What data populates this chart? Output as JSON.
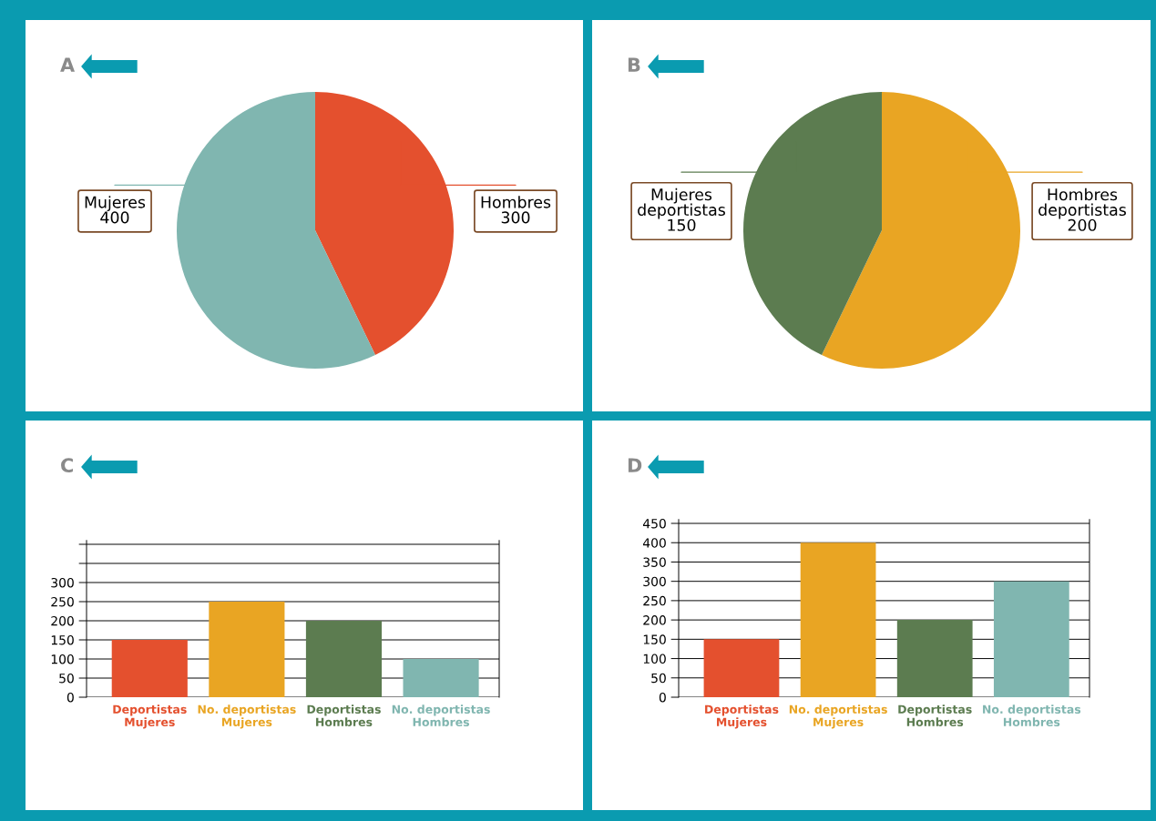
{
  "chart_data": [
    {
      "type": "pie",
      "title": "A",
      "categories": [
        "Hombres",
        "Mujeres"
      ],
      "values": [
        300,
        400
      ],
      "colors": [
        "#e4502e",
        "#80b6b0"
      ],
      "data_labels": true
    },
    {
      "type": "pie",
      "title": "B",
      "categories": [
        "Hombres\ndeportistas",
        "Mujeres\ndeportistas"
      ],
      "values": [
        200,
        150
      ],
      "colors": [
        "#e9a523",
        "#5c7c50"
      ],
      "data_labels": true
    },
    {
      "type": "bar",
      "title": "C",
      "categories": [
        "Deportistas\nMujeres",
        "No. deportistas\nMujeres",
        "Deportistas\nHombres",
        "No. deportistas\nHombres"
      ],
      "values": [
        150,
        250,
        200,
        100
      ],
      "colors": [
        "#e4502e",
        "#e9a523",
        "#5c7c50",
        "#80b6b0"
      ],
      "ylim": [
        0,
        410
      ],
      "yticks": [
        0,
        50,
        100,
        150,
        200,
        250,
        300,
        {
          "value": 350,
          "label": null
        },
        {
          "value": 400,
          "label": null
        }
      ],
      "grid": "y"
    },
    {
      "type": "bar",
      "title": "D",
      "categories": [
        "Deportistas\nMujeres",
        "No. deportistas\nMujeres",
        "Deportistas\nHombres",
        "No. deportistas\nHombres"
      ],
      "values": [
        150,
        400,
        200,
        300
      ],
      "colors": [
        "#e4502e",
        "#e9a523",
        "#5c7c50",
        "#80b6b0"
      ],
      "ylim": [
        0,
        460
      ],
      "yticks": [
        0,
        50,
        100,
        150,
        200,
        250,
        300,
        350,
        400,
        450
      ],
      "grid": "y"
    }
  ]
}
